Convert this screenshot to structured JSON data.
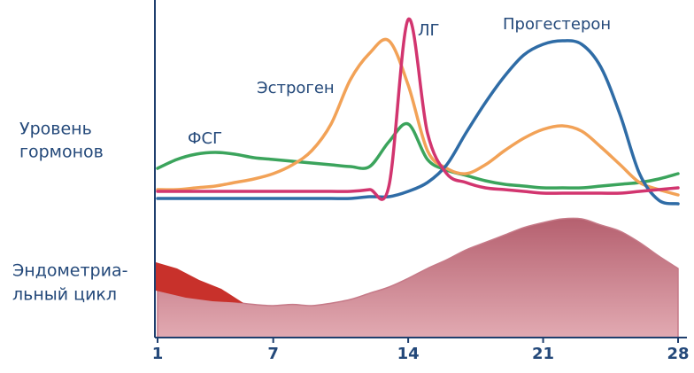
{
  "annotations": [
    "Уровень",
    "гормонов",
    "Эндометриа-",
    "льный цикл"
  ],
  "chart_data": {
    "type": "line",
    "x": [
      1,
      2,
      3,
      4,
      5,
      6,
      7,
      8,
      9,
      10,
      11,
      12,
      13,
      14,
      15,
      16,
      17,
      18,
      19,
      20,
      21,
      22,
      23,
      24,
      25,
      26,
      27,
      28
    ],
    "xlim": [
      1,
      28
    ],
    "xticks": [
      1,
      7,
      14,
      21,
      28
    ],
    "ylim": [
      0,
      110
    ],
    "y2lim": [
      0,
      100
    ],
    "series": [
      {
        "name": "ФСГ",
        "color": "#3ba45c",
        "values": [
          20,
          25,
          28,
          29,
          28,
          26,
          25,
          24,
          23,
          22,
          21,
          21,
          35,
          45,
          25,
          19,
          16,
          13,
          11,
          10,
          9,
          9,
          9,
          10,
          11,
          12,
          14,
          17
        ]
      },
      {
        "name": "Эстроген",
        "color": "#f2a257",
        "values": [
          8,
          8,
          9,
          10,
          12,
          14,
          17,
          22,
          30,
          45,
          70,
          85,
          92,
          67,
          30,
          20,
          17,
          22,
          30,
          37,
          42,
          44,
          41,
          32,
          22,
          12,
          8,
          5
        ]
      },
      {
        "name": "ЛГ",
        "color": "#d2356f",
        "values": [
          7,
          7,
          7,
          7,
          7,
          7,
          7,
          7,
          7,
          7,
          7,
          8,
          10,
          104,
          40,
          17,
          12,
          9,
          8,
          7,
          6,
          6,
          6,
          6,
          6,
          7,
          8,
          9
        ]
      },
      {
        "name": "Прогестерон",
        "color": "#2f6ca6",
        "values": [
          3,
          3,
          3,
          3,
          3,
          3,
          3,
          3,
          3,
          3,
          3,
          4,
          4,
          7,
          12,
          22,
          40,
          57,
          72,
          84,
          90,
          92,
          90,
          77,
          50,
          17,
          2,
          0
        ]
      },
      {
        "name": "Эндометрий",
        "axis": "y2",
        "color": "#c67a88",
        "values": [
          47,
          40,
          35,
          32,
          28,
          26,
          25,
          26,
          25,
          27,
          30,
          35,
          40,
          47,
          55,
          62,
          70,
          76,
          82,
          88,
          92,
          95,
          95,
          90,
          85,
          76,
          65,
          55
        ]
      }
    ]
  }
}
